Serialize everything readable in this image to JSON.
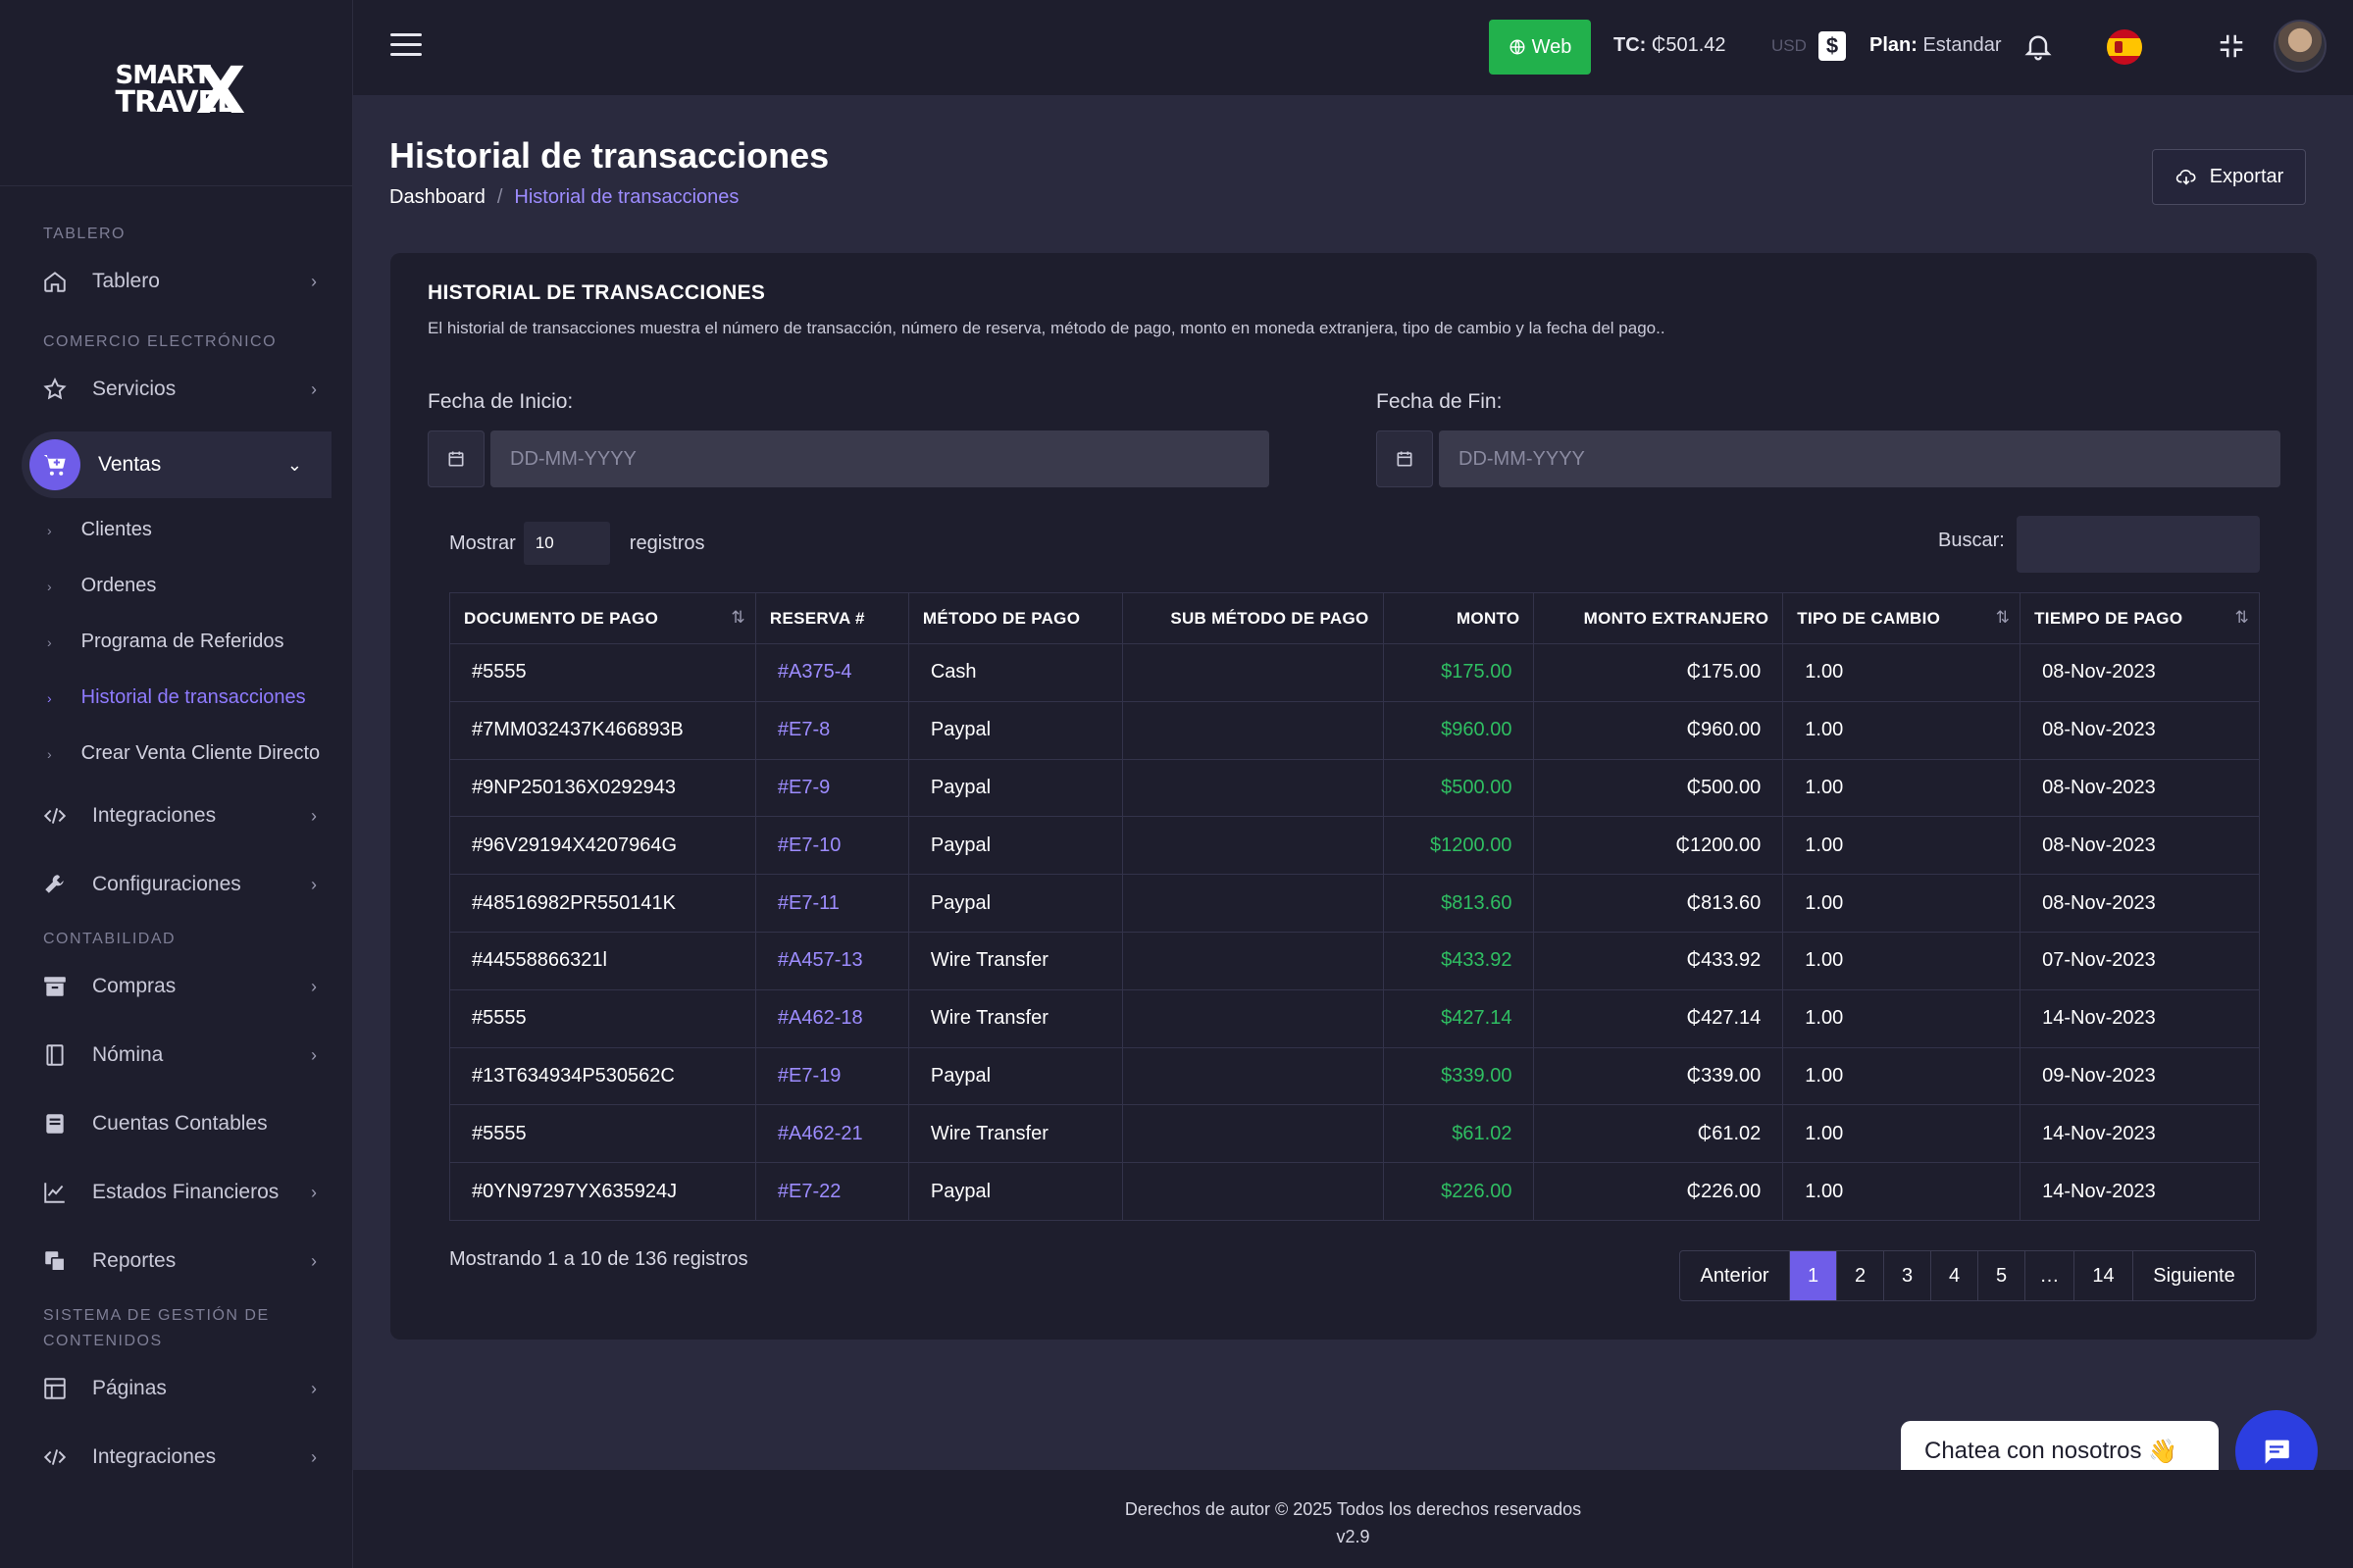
{
  "sidebar": {
    "logo": {
      "line1": "SMART",
      "line2": "TRAVEL",
      "mark": "X"
    },
    "sections": {
      "tablero": "TABLERO",
      "comercio": "COMERCIO ELECTRÓNICO",
      "contabilidad": "CONTABILIDAD",
      "cms_line1": "SISTEMA DE GESTIÓN DE",
      "cms_line2": "CONTENIDOS"
    },
    "items": {
      "tablero": "Tablero",
      "servicios": "Servicios",
      "ventas": "Ventas",
      "integraciones": "Integraciones",
      "configuraciones": "Configuraciones",
      "compras": "Compras",
      "nomina": "Nómina",
      "cuentas": "Cuentas Contables",
      "estados": "Estados Financieros",
      "reportes": "Reportes",
      "paginas": "Páginas",
      "integraciones2": "Integraciones"
    },
    "ventas_sub": [
      "Clientes",
      "Ordenes",
      "Programa de Referidos",
      "Historial de transacciones",
      "Crear Venta Cliente Directo"
    ]
  },
  "topbar": {
    "web_label": "Web",
    "tc_label": "TC:",
    "tc_value": "₵501.42",
    "currency": "USD",
    "currency_symbol": "$",
    "plan_label": "Plan:",
    "plan_value": "Estandar"
  },
  "page": {
    "title": "Historial de transacciones",
    "breadcrumb_home": "Dashboard",
    "breadcrumb_sep": "/",
    "breadcrumb_current": "Historial de transacciones",
    "export_label": "Exportar"
  },
  "card": {
    "title": "HISTORIAL DE TRANSACCIONES",
    "description": "El historial de transacciones muestra el número de transacción, número de reserva, método de pago, monto en moneda extranjera, tipo de cambio y la fecha del pago..",
    "start_label": "Fecha de Inicio:",
    "end_label": "Fecha de Fin:",
    "date_placeholder": "DD-MM-YYYY",
    "show_label": "Mostrar",
    "show_value": "10",
    "records_label": "registros",
    "search_label": "Buscar:",
    "showing_text": "Mostrando 1 a 10 de 136 registros"
  },
  "table": {
    "headers": [
      "DOCUMENTO DE PAGO",
      "RESERVA #",
      "MÉTODO DE PAGO",
      "SUB MÉTODO DE PAGO",
      "MONTO",
      "MONTO EXTRANJERO",
      "TIPO DE CAMBIO",
      "TIEMPO DE PAGO"
    ],
    "sort_icon": "⇅",
    "rows": [
      [
        "#5555",
        "#A375-4",
        "Cash",
        "",
        "$175.00",
        "₵175.00",
        "1.00",
        "08-Nov-2023"
      ],
      [
        "#7MM032437K466893B",
        "#E7-8",
        "Paypal",
        "",
        "$960.00",
        "₵960.00",
        "1.00",
        "08-Nov-2023"
      ],
      [
        "#9NP250136X0292943",
        "#E7-9",
        "Paypal",
        "",
        "$500.00",
        "₵500.00",
        "1.00",
        "08-Nov-2023"
      ],
      [
        "#96V29194X4207964G",
        "#E7-10",
        "Paypal",
        "",
        "$1200.00",
        "₵1200.00",
        "1.00",
        "08-Nov-2023"
      ],
      [
        "#48516982PR550141K",
        "#E7-11",
        "Paypal",
        "",
        "$813.60",
        "₵813.60",
        "1.00",
        "08-Nov-2023"
      ],
      [
        "#44558866321l",
        "#A457-13",
        "Wire Transfer",
        "",
        "$433.92",
        "₵433.92",
        "1.00",
        "07-Nov-2023"
      ],
      [
        "#5555",
        "#A462-18",
        "Wire Transfer",
        "",
        "$427.14",
        "₵427.14",
        "1.00",
        "14-Nov-2023"
      ],
      [
        "#13T634934P530562C",
        "#E7-19",
        "Paypal",
        "",
        "$339.00",
        "₵339.00",
        "1.00",
        "09-Nov-2023"
      ],
      [
        "#5555",
        "#A462-21",
        "Wire Transfer",
        "",
        "$61.02",
        "₵61.02",
        "1.00",
        "14-Nov-2023"
      ],
      [
        "#0YN97297YX635924J",
        "#E7-22",
        "Paypal",
        "",
        "$226.00",
        "₵226.00",
        "1.00",
        "14-Nov-2023"
      ]
    ]
  },
  "pagination": {
    "prev": "Anterior",
    "pages": [
      "1",
      "2",
      "3",
      "4",
      "5",
      "…",
      "14"
    ],
    "current": "1",
    "next": "Siguiente"
  },
  "chat": {
    "label": "Chatea con nosotros",
    "emoji": "👋"
  },
  "footer": {
    "copyright": "Derechos de autor © 2025 Todos los derechos reservados",
    "version": "v2.9"
  },
  "colors": {
    "accent": "#6f5de8",
    "link": "#9d8cff",
    "money": "#2fbf62",
    "web_button": "#22b14c",
    "chat_button": "#2c3ee0"
  }
}
